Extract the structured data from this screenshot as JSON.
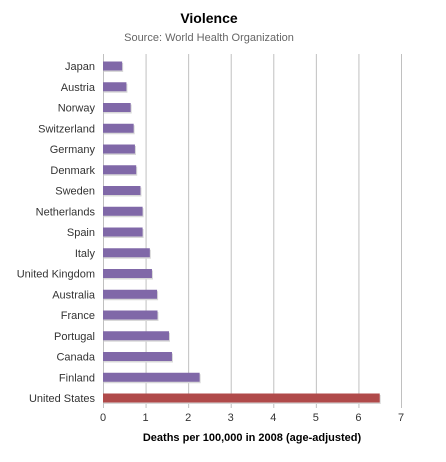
{
  "chart_data": {
    "type": "bar",
    "orientation": "horizontal",
    "title": "Violence",
    "subtitle": "Source: World Health Organization",
    "xlabel": "Deaths per 100,000 in 2008 (age-adjusted)",
    "ylabel": "",
    "xlim": [
      0,
      7
    ],
    "xticks": [
      0,
      1,
      2,
      3,
      4,
      5,
      6,
      7
    ],
    "grid": true,
    "categories": [
      "Japan",
      "Austria",
      "Norway",
      "Switzerland",
      "Germany",
      "Denmark",
      "Sweden",
      "Netherlands",
      "Spain",
      "Italy",
      "United Kingdom",
      "Australia",
      "France",
      "Portugal",
      "Canada",
      "Finland",
      "United States"
    ],
    "values": [
      0.45,
      0.55,
      0.65,
      0.72,
      0.75,
      0.78,
      0.88,
      0.93,
      0.93,
      1.1,
      1.15,
      1.27,
      1.28,
      1.55,
      1.62,
      2.27,
      6.5
    ],
    "colors": {
      "default": "#8068a8",
      "highlight": "#b04a4a",
      "highlight_category": "United States",
      "grid": "#c0c0c0"
    }
  }
}
